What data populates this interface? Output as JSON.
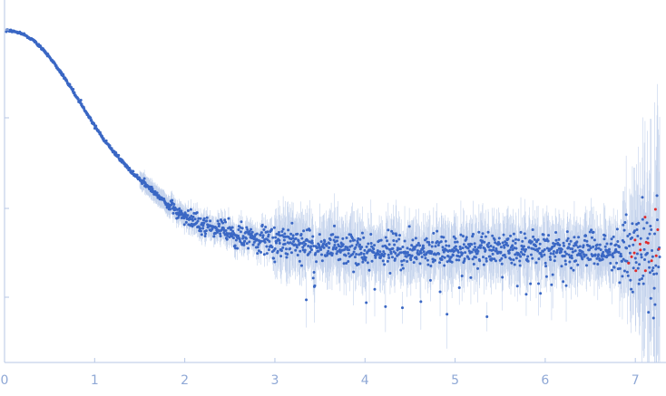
{
  "chart_data": {
    "type": "scatter",
    "title": "",
    "xlabel": "",
    "ylabel": "",
    "xlim": [
      0,
      7.3
    ],
    "ylog": true,
    "grid": false,
    "x_ticks": [
      "0",
      "1",
      "2",
      "3",
      "4",
      "5",
      "6",
      "7"
    ],
    "colors": {
      "points": "#3a67c4",
      "error_bars": "#c3d2ec",
      "outliers": "#e02a2a",
      "axis": "#b7c7e6",
      "tick_labels": "#8fa8d6"
    },
    "series": [
      {
        "profile_x": [
          0.0,
          0.1,
          0.2,
          0.3,
          0.4,
          0.5,
          0.6,
          0.7,
          0.8,
          0.9,
          1.0,
          1.1,
          1.2,
          1.3,
          1.4,
          1.5,
          1.6,
          1.7,
          1.8,
          1.9,
          2.0,
          2.2,
          2.4,
          2.6,
          2.8,
          3.0,
          3.5,
          4.0,
          4.5,
          5.0,
          5.5,
          6.0,
          6.5,
          7.0,
          7.3
        ],
        "profile_log_y": [
          1.0,
          0.995,
          0.985,
          0.965,
          0.935,
          0.895,
          0.85,
          0.8,
          0.745,
          0.69,
          0.635,
          0.585,
          0.54,
          0.5,
          0.465,
          0.43,
          0.4,
          0.37,
          0.34,
          0.315,
          0.29,
          0.26,
          0.235,
          0.215,
          0.2,
          0.19,
          0.175,
          0.165,
          0.16,
          0.162,
          0.164,
          0.166,
          0.16,
          0.15,
          0.14
        ]
      }
    ]
  }
}
